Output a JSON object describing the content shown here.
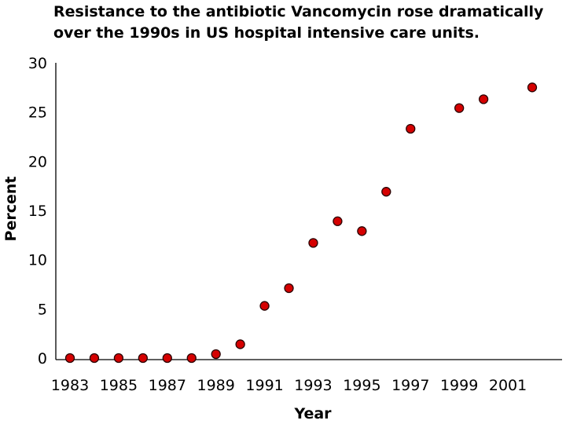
{
  "chart_data": {
    "type": "scatter",
    "title_lines": [
      "Resistance to the antibiotic Vancomycin rose dramatically",
      "over the 1990s in US hospital intensive care units."
    ],
    "xlabel": "Year",
    "ylabel": "Percent",
    "xlim": [
      1983,
      2002
    ],
    "ylim": [
      0,
      30
    ],
    "x_ticks": [
      1983,
      1985,
      1987,
      1989,
      1991,
      1993,
      1995,
      1997,
      1999,
      2001
    ],
    "y_ticks": [
      0,
      5,
      10,
      15,
      20,
      25,
      30
    ],
    "grid": false,
    "colors": {
      "point_fill": "#d50000",
      "point_stroke": "#2a0000"
    },
    "points": [
      {
        "x": 1983,
        "y": 0
      },
      {
        "x": 1984,
        "y": 0
      },
      {
        "x": 1985,
        "y": 0
      },
      {
        "x": 1986,
        "y": 0
      },
      {
        "x": 1987,
        "y": 0
      },
      {
        "x": 1988,
        "y": 0
      },
      {
        "x": 1989,
        "y": 0.4
      },
      {
        "x": 1990,
        "y": 1.4
      },
      {
        "x": 1991,
        "y": 5.3
      },
      {
        "x": 1992,
        "y": 7.1
      },
      {
        "x": 1993,
        "y": 11.7
      },
      {
        "x": 1994,
        "y": 13.9
      },
      {
        "x": 1995,
        "y": 12.9
      },
      {
        "x": 1996,
        "y": 16.9
      },
      {
        "x": 1997,
        "y": 23.3
      },
      {
        "x": 1999,
        "y": 25.4
      },
      {
        "x": 2000,
        "y": 26.3
      },
      {
        "x": 2002,
        "y": 27.5
      }
    ]
  }
}
